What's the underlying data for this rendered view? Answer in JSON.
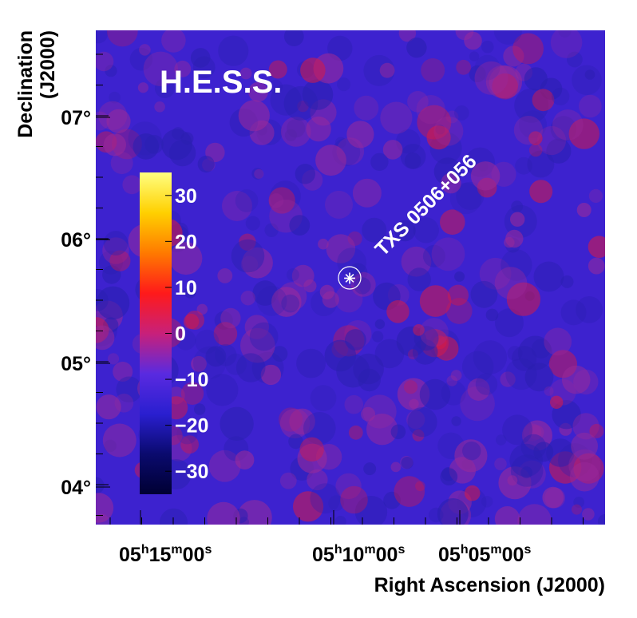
{
  "chart_data": {
    "type": "heatmap",
    "title": "H.E.S.S.",
    "xlabel": "Right Ascension (J2000)",
    "ylabel_line1": "Declination",
    "ylabel_line2": "(J2000)",
    "x_ticks": [
      {
        "h": "05",
        "m": "15",
        "s": "00",
        "label": "05h15m00s"
      },
      {
        "h": "05",
        "m": "10",
        "s": "00",
        "label": "05h10m00s"
      },
      {
        "h": "05",
        "m": "05",
        "s": "00",
        "label": "05h05m00s"
      }
    ],
    "y_ticks": [
      "07°",
      "06°",
      "05°",
      "04°"
    ],
    "colorbar": {
      "ticks": [
        "30",
        "20",
        "10",
        "0",
        "−10",
        "−20",
        "−30"
      ],
      "range": [
        -35,
        35
      ],
      "colors": [
        "#000033",
        "#0a0a6e",
        "#2a1fd0",
        "#5a2ae0",
        "#c8207a",
        "#ff1a1a",
        "#ff7a00",
        "#ffd000",
        "#ffff80"
      ]
    },
    "source": {
      "label": "TXS 0506+056",
      "marker": "star-in-circle"
    },
    "background_color": "#3d22cf"
  }
}
